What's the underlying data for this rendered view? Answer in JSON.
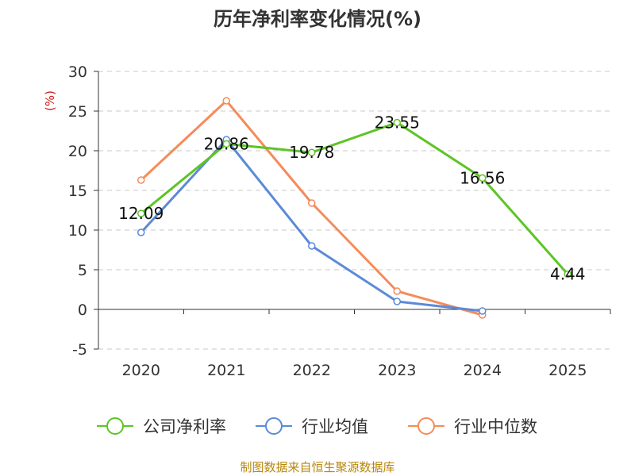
{
  "chart_data": {
    "type": "line",
    "title": "历年净利率变化情况(%)",
    "unit_label": "(%)",
    "categories": [
      "2020",
      "2021",
      "2022",
      "2023",
      "2024",
      "2025"
    ],
    "yticks": [
      "30",
      "25",
      "20",
      "15",
      "10",
      "5",
      "0",
      "-5"
    ],
    "ylim": [
      -5,
      30
    ],
    "grid": true,
    "legend_position": "bottom",
    "series": [
      {
        "name": "公司净利率",
        "color": "#5cc524",
        "values": [
          12.09,
          20.86,
          19.78,
          23.55,
          16.56,
          4.44
        ],
        "labels": [
          "12.09",
          "20.86",
          "19.78",
          "23.55",
          "16.56",
          "4.44"
        ]
      },
      {
        "name": "行业均值",
        "color": "#5b8ad8",
        "values": [
          9.7,
          21.4,
          8.0,
          1.0,
          -0.2,
          null
        ]
      },
      {
        "name": "行业中位数",
        "color": "#f58b5a",
        "values": [
          16.3,
          26.3,
          13.4,
          2.3,
          -0.7,
          null
        ]
      }
    ]
  },
  "source": "制图数据来自恒生聚源数据库"
}
